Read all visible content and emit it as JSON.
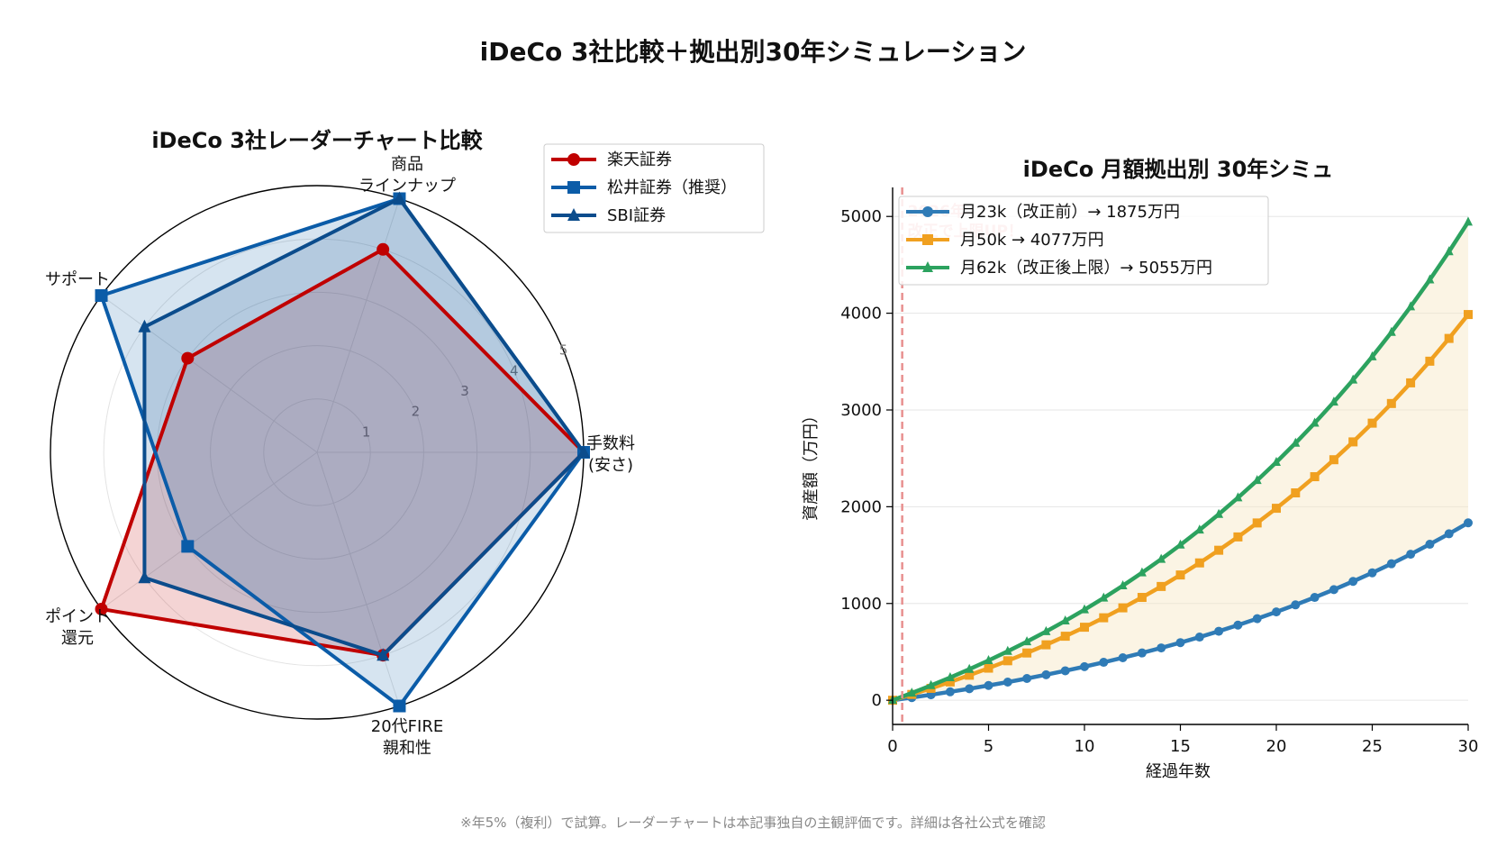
{
  "page": {
    "title": "iDeCo 3社比較＋拠出別30年シミュレーション",
    "footnote": "※年5%（複利）で試算。レーダーチャートは本記事独自の主観評価です。詳細は各社公式を確認"
  },
  "chart_data": [
    {
      "type": "radar",
      "title": "iDeCo 3社レーダーチャート比較",
      "axes": [
        [
          "手数料",
          "(安さ)"
        ],
        [
          "商品",
          "ラインナップ"
        ],
        [
          "サポート"
        ],
        [
          "ポイント",
          "還元"
        ],
        [
          "20代FIRE",
          "親和性"
        ]
      ],
      "range": [
        0,
        5
      ],
      "radial_ticks": [
        "1",
        "2",
        "3",
        "4",
        "5"
      ],
      "legend_position": "top-right",
      "series": [
        {
          "name": "楽天証券",
          "color": "#c00000",
          "marker": "circle",
          "values": [
            5,
            4,
            3,
            5,
            4
          ]
        },
        {
          "name": "松井証券（推奨）",
          "color": "#0b5ca8",
          "marker": "square",
          "values": [
            5,
            5,
            5,
            3,
            5
          ]
        },
        {
          "name": "SBI証券",
          "color": "#0b4c8c",
          "marker": "triangle",
          "values": [
            5,
            5,
            4,
            4,
            4
          ]
        }
      ]
    },
    {
      "type": "line",
      "title": "iDeCo 月額拠出別 30年シミュ",
      "xlabel": "経過年数",
      "ylabel": "資産額（万円）",
      "xlim": [
        0,
        30
      ],
      "ylim": [
        -250,
        5300
      ],
      "x_ticks": [
        0,
        5,
        10,
        15,
        20,
        25,
        30
      ],
      "y_ticks": [
        0,
        1000,
        2000,
        3000,
        4000,
        5000
      ],
      "grid": "horizontal",
      "legend_position": "top-left",
      "annual_rate": 0.05,
      "years": 30,
      "annotation": {
        "lines": [
          "2026年",
          "改正で上限UP！"
        ],
        "x": 0.5
      },
      "series": [
        {
          "name": "月23k（改正前）→ 1875万円",
          "color": "#2f7bb6",
          "marker": "circle",
          "monthly_man": 2.3
        },
        {
          "name": "月50k → 4077万円",
          "color": "#f0a020",
          "marker": "square",
          "monthly_man": 5.0
        },
        {
          "name": "月62k（改正後上限）→ 5055万円",
          "color": "#2ca25f",
          "marker": "triangle",
          "monthly_man": 6.2
        }
      ]
    }
  ]
}
